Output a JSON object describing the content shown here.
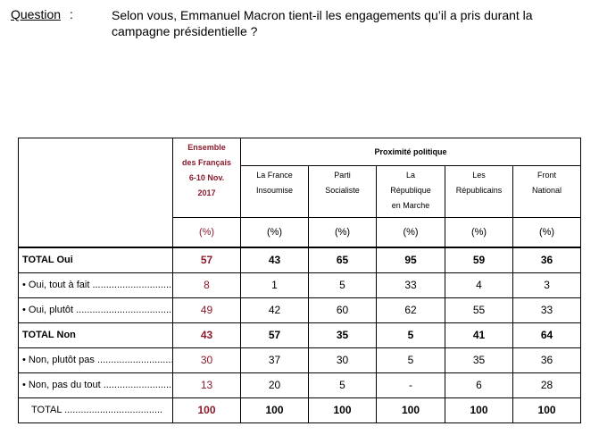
{
  "question": {
    "label": "Question",
    "separator": ":",
    "text": "Selon vous, Emmanuel Macron tient-il les engagements qu’il a pris durant la campagne présidentielle ?"
  },
  "table": {
    "ensemble_header": [
      "Ensemble",
      "des Français",
      "6-10 Nov.",
      "2017"
    ],
    "group_header": "Proximité politique",
    "parties": [
      [
        "La France",
        "Insoumise"
      ],
      [
        "Parti",
        "Socialiste"
      ],
      [
        "La",
        "République",
        "en Marche"
      ],
      [
        "Les",
        "Républicains"
      ],
      [
        "Front",
        "National"
      ]
    ],
    "pct_label": "(%)",
    "rows": [
      {
        "label": "TOTAL Oui",
        "style": "bold",
        "ensemble": "57",
        "values": [
          "43",
          "65",
          "95",
          "59",
          "36"
        ]
      },
      {
        "label": "• Oui, tout à fait",
        "style": "dots",
        "ensemble": "8",
        "values": [
          "1",
          "5",
          "33",
          "4",
          "3"
        ]
      },
      {
        "label": "• Oui, plutôt",
        "style": "dots",
        "ensemble": "49",
        "values": [
          "42",
          "60",
          "62",
          "55",
          "33"
        ]
      },
      {
        "label": "TOTAL Non",
        "style": "bold",
        "ensemble": "43",
        "values": [
          "57",
          "35",
          "5",
          "41",
          "64"
        ]
      },
      {
        "label": "• Non, plutôt pas",
        "style": "dots",
        "ensemble": "30",
        "values": [
          "37",
          "30",
          "5",
          "35",
          "36"
        ]
      },
      {
        "label": "• Non, pas du tout",
        "style": "dots",
        "ensemble": "13",
        "values": [
          "20",
          "5",
          "-",
          "6",
          "28"
        ]
      },
      {
        "label": "TOTAL",
        "style": "total",
        "ensemble": "100",
        "values": [
          "100",
          "100",
          "100",
          "100",
          "100"
        ]
      }
    ]
  }
}
